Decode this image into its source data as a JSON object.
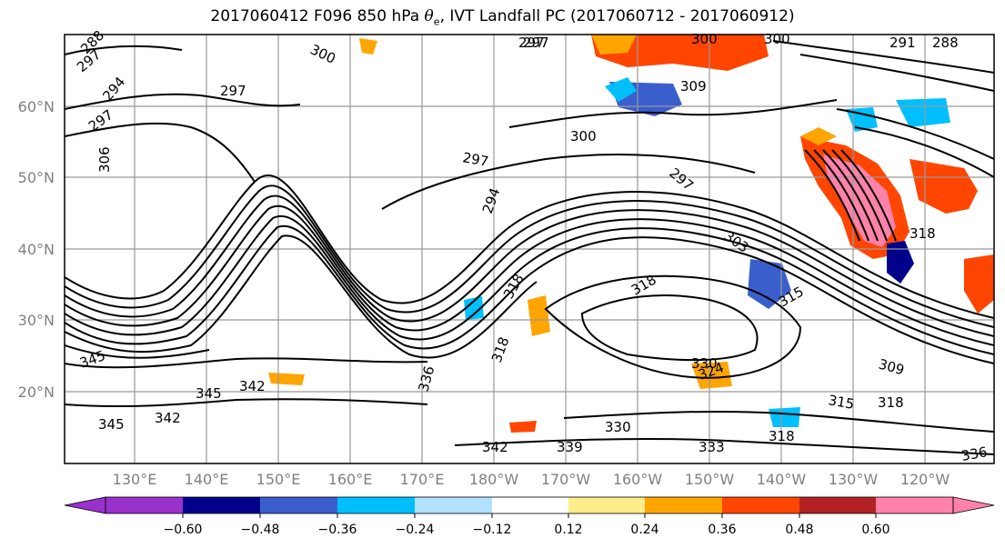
{
  "title": {
    "prefix": "2017060412 F096 850 hPa ",
    "theta": "θ",
    "sub": "e",
    "suffix": ", IVT Landfall PC (2017060712 - 2017060912)"
  },
  "map": {
    "lat_labels": [
      "60°N",
      "50°N",
      "40°N",
      "30°N",
      "20°N"
    ],
    "lon_labels": [
      "130°E",
      "140°E",
      "150°E",
      "160°E",
      "170°E",
      "180°W",
      "170°W",
      "160°W",
      "150°W",
      "140°W",
      "130°W",
      "120°W"
    ],
    "contour_labels": [
      "288",
      "297",
      "294",
      "297",
      "300",
      "297",
      "300",
      "309",
      "297",
      "294",
      "297",
      "288",
      "297",
      "300",
      "303",
      "318",
      "318",
      "315",
      "318",
      "318",
      "309",
      "315",
      "318",
      "345",
      "342",
      "345",
      "345",
      "342",
      "336",
      "330",
      "330",
      "324",
      "342",
      "339",
      "333",
      "336",
      "297",
      "291",
      "300",
      "306",
      "318"
    ]
  },
  "colorbar": {
    "tick_labels": [
      "−0.60",
      "−0.48",
      "−0.36",
      "−0.24",
      "−0.12",
      "0.12",
      "0.24",
      "0.36",
      "0.48",
      "0.60"
    ],
    "colors": [
      "#9932cc",
      "#00008b",
      "#3a5fcd",
      "#00bfff",
      "#b0e2ff",
      "#ffffff",
      "#ffec8b",
      "#ffa500",
      "#ff4500",
      "#b22222",
      "#ff82ab",
      "#ff82ab"
    ],
    "extend": "both"
  }
}
